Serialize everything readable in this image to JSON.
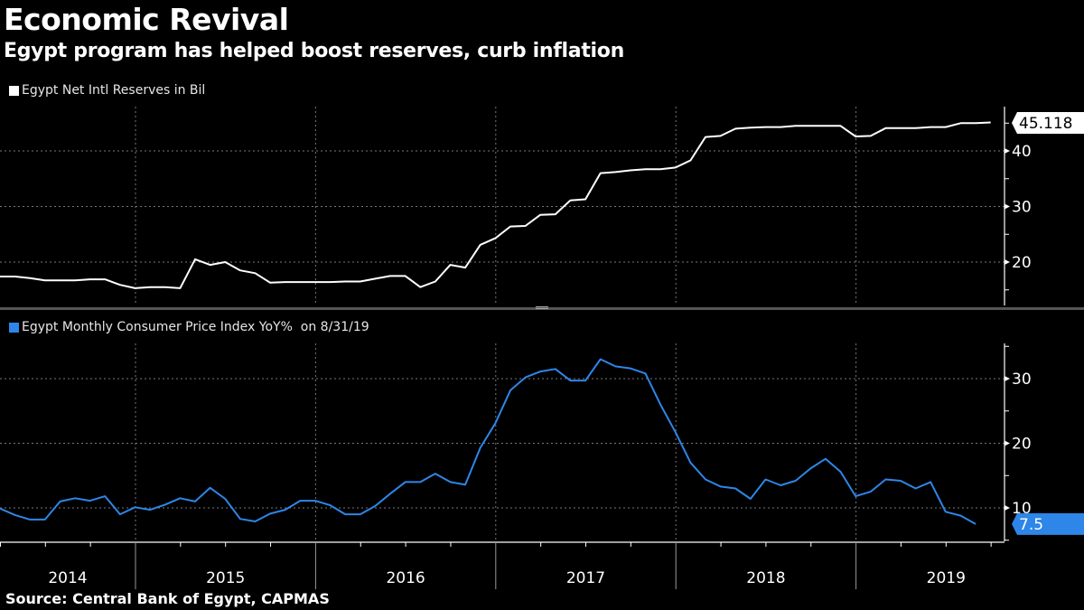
{
  "title": "Economic Revival",
  "subtitle": "Egypt program has helped boost reserves, curb inflation",
  "source": "Source:  Central Bank of Egypt, CAPMAS",
  "colors": {
    "reserves": "#ffffff",
    "cpi": "#2e86e8",
    "background": "#000000",
    "divider": "#555555"
  },
  "chart_data": [
    {
      "type": "line",
      "legend": "Egypt Net Intl Reserves in Bil",
      "series": [
        {
          "name": "Egypt Net Intl Reserves in Bil",
          "start_month": "2014-02",
          "values": [
            17.4,
            17.4,
            17.1,
            16.7,
            16.7,
            16.7,
            16.9,
            16.9,
            15.9,
            15.3,
            15.5,
            15.5,
            15.3,
            20.5,
            19.5,
            20.0,
            18.5,
            18.0,
            16.3,
            16.4,
            16.4,
            16.4,
            16.4,
            16.5,
            16.5,
            17.0,
            17.5,
            17.5,
            15.5,
            16.5,
            19.5,
            19.0,
            23.1,
            24.3,
            26.4,
            26.5,
            28.5,
            28.6,
            31.1,
            31.3,
            36.0,
            36.2,
            36.5,
            36.7,
            36.7,
            37.0,
            38.3,
            42.5,
            42.7,
            44.0,
            44.2,
            44.3,
            44.3,
            44.5,
            44.5,
            44.5,
            44.5,
            42.6,
            42.7,
            44.1,
            44.1,
            44.1,
            44.3,
            44.3,
            45.0,
            45.0,
            45.118
          ]
        }
      ],
      "last_value_label": "45.118",
      "yticks": [
        20,
        30,
        40
      ],
      "ytick_labels": [
        "20",
        "30",
        "40"
      ],
      "ylim": [
        11.5,
        47.5
      ],
      "grid": true
    },
    {
      "type": "line",
      "legend": "Egypt Monthly Consumer Price Index YoY%  on 8/31/19",
      "series": [
        {
          "name": "Egypt Monthly Consumer Price Index YoY%",
          "start_month": "2014-02",
          "values": [
            9.9,
            8.9,
            8.2,
            8.2,
            11.0,
            11.5,
            11.1,
            11.8,
            9.0,
            10.1,
            9.7,
            10.5,
            11.5,
            11.0,
            13.1,
            11.4,
            8.3,
            7.9,
            9.1,
            9.7,
            11.1,
            11.1,
            10.4,
            9.0,
            9.0,
            10.3,
            12.2,
            14.0,
            14.0,
            15.3,
            14.0,
            13.6,
            19.3,
            23.1,
            28.2,
            30.2,
            31.1,
            31.5,
            29.7,
            29.7,
            33.0,
            31.9,
            31.6,
            30.8,
            26.0,
            21.7,
            17.0,
            14.4,
            13.3,
            13.0,
            11.4,
            14.4,
            13.5,
            14.2,
            16.1,
            17.6,
            15.6,
            11.8,
            12.5,
            14.4,
            14.2,
            13.0,
            14.0,
            9.4,
            8.8,
            7.5
          ]
        }
      ],
      "last_value_label": "7.5",
      "yticks": [
        10,
        20,
        30
      ],
      "ytick_labels": [
        "10",
        "20",
        "30"
      ],
      "ylim": [
        4.7,
        35.3
      ],
      "grid": true
    }
  ],
  "x_axis": {
    "year_labels": [
      "2014",
      "2015",
      "2016",
      "2017",
      "2018",
      "2019"
    ],
    "start_year": 2014,
    "end_year": 2019
  }
}
